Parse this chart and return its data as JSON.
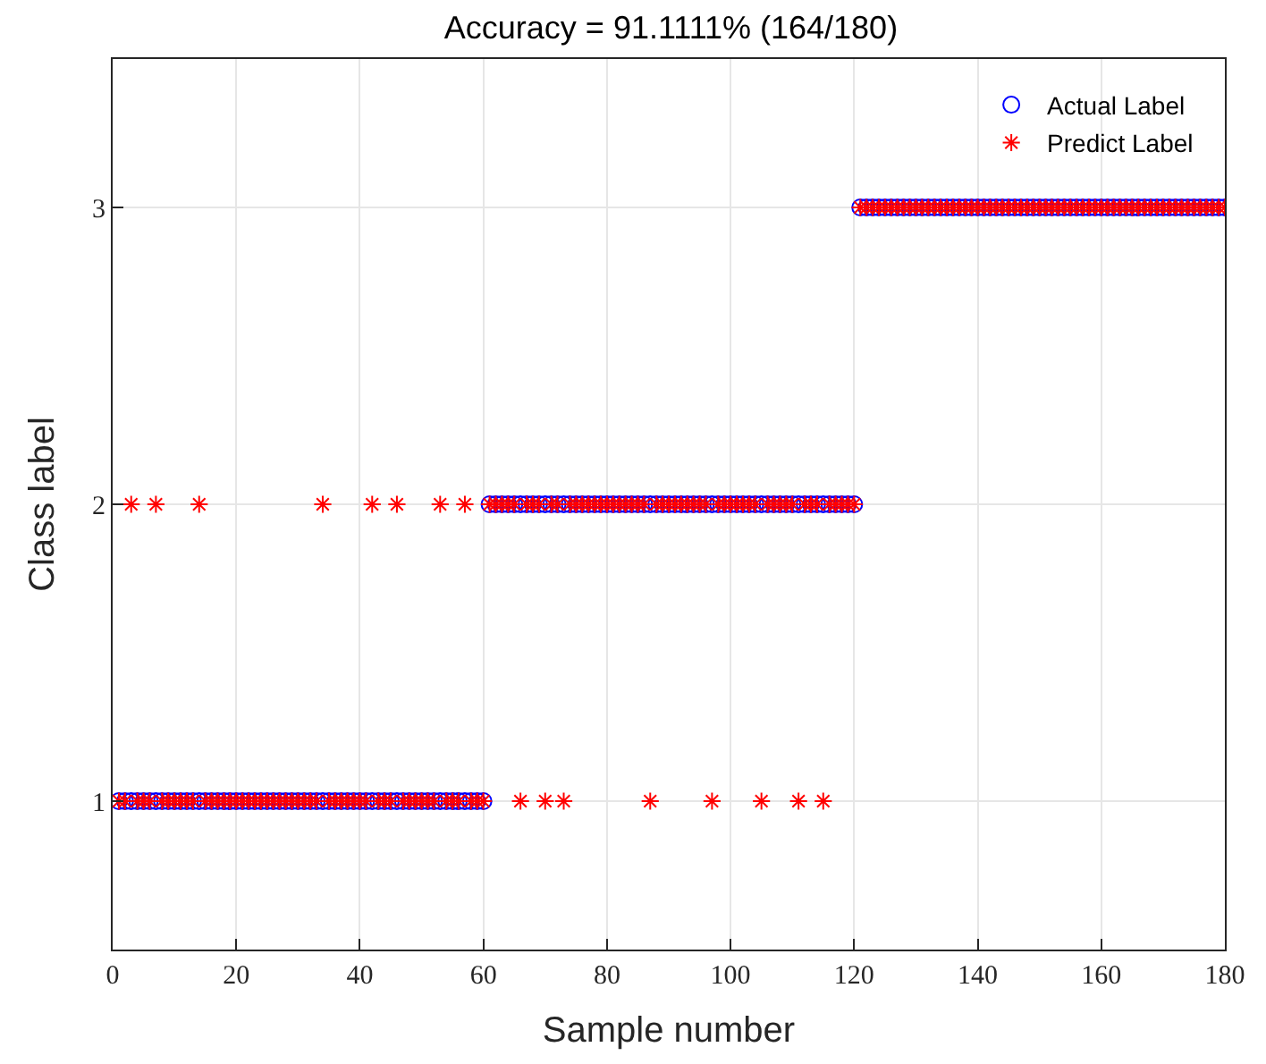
{
  "chart_data": {
    "type": "scatter",
    "title": "Accuracy = 91.1111% (164/180)",
    "xlabel": "Sample number",
    "ylabel": "Class label",
    "x": [
      1,
      2,
      3,
      4,
      5,
      6,
      7,
      8,
      9,
      10,
      11,
      12,
      13,
      14,
      15,
      16,
      17,
      18,
      19,
      20,
      21,
      22,
      23,
      24,
      25,
      26,
      27,
      28,
      29,
      30,
      31,
      32,
      33,
      34,
      35,
      36,
      37,
      38,
      39,
      40,
      41,
      42,
      43,
      44,
      45,
      46,
      47,
      48,
      49,
      50,
      51,
      52,
      53,
      54,
      55,
      56,
      57,
      58,
      59,
      60,
      61,
      62,
      63,
      64,
      65,
      66,
      67,
      68,
      69,
      70,
      71,
      72,
      73,
      74,
      75,
      76,
      77,
      78,
      79,
      80,
      81,
      82,
      83,
      84,
      85,
      86,
      87,
      88,
      89,
      90,
      91,
      92,
      93,
      94,
      95,
      96,
      97,
      98,
      99,
      100,
      101,
      102,
      103,
      104,
      105,
      106,
      107,
      108,
      109,
      110,
      111,
      112,
      113,
      114,
      115,
      116,
      117,
      118,
      119,
      120,
      121,
      122,
      123,
      124,
      125,
      126,
      127,
      128,
      129,
      130,
      131,
      132,
      133,
      134,
      135,
      136,
      137,
      138,
      139,
      140,
      141,
      142,
      143,
      144,
      145,
      146,
      147,
      148,
      149,
      150,
      151,
      152,
      153,
      154,
      155,
      156,
      157,
      158,
      159,
      160,
      161,
      162,
      163,
      164,
      165,
      166,
      167,
      168,
      169,
      170,
      171,
      172,
      173,
      174,
      175,
      176,
      177,
      178,
      179,
      180
    ],
    "series": [
      {
        "name": "Actual Label",
        "color": "#0000ff",
        "marker": "circle",
        "values": [
          1,
          1,
          1,
          1,
          1,
          1,
          1,
          1,
          1,
          1,
          1,
          1,
          1,
          1,
          1,
          1,
          1,
          1,
          1,
          1,
          1,
          1,
          1,
          1,
          1,
          1,
          1,
          1,
          1,
          1,
          1,
          1,
          1,
          1,
          1,
          1,
          1,
          1,
          1,
          1,
          1,
          1,
          1,
          1,
          1,
          1,
          1,
          1,
          1,
          1,
          1,
          1,
          1,
          1,
          1,
          1,
          1,
          1,
          1,
          1,
          2,
          2,
          2,
          2,
          2,
          2,
          2,
          2,
          2,
          2,
          2,
          2,
          2,
          2,
          2,
          2,
          2,
          2,
          2,
          2,
          2,
          2,
          2,
          2,
          2,
          2,
          2,
          2,
          2,
          2,
          2,
          2,
          2,
          2,
          2,
          2,
          2,
          2,
          2,
          2,
          2,
          2,
          2,
          2,
          2,
          2,
          2,
          2,
          2,
          2,
          2,
          2,
          2,
          2,
          2,
          2,
          2,
          2,
          2,
          2,
          3,
          3,
          3,
          3,
          3,
          3,
          3,
          3,
          3,
          3,
          3,
          3,
          3,
          3,
          3,
          3,
          3,
          3,
          3,
          3,
          3,
          3,
          3,
          3,
          3,
          3,
          3,
          3,
          3,
          3,
          3,
          3,
          3,
          3,
          3,
          3,
          3,
          3,
          3,
          3,
          3,
          3,
          3,
          3,
          3,
          3,
          3,
          3,
          3,
          3,
          3,
          3,
          3,
          3,
          3,
          3,
          3,
          3,
          3,
          3
        ]
      },
      {
        "name": "Predict Label",
        "color": "#ff0000",
        "marker": "cross",
        "values": [
          1,
          1,
          2,
          1,
          1,
          1,
          2,
          1,
          1,
          1,
          1,
          1,
          1,
          2,
          1,
          1,
          1,
          1,
          1,
          1,
          1,
          1,
          1,
          1,
          1,
          1,
          1,
          1,
          1,
          1,
          1,
          1,
          1,
          2,
          1,
          1,
          1,
          1,
          1,
          1,
          1,
          2,
          1,
          1,
          1,
          2,
          1,
          1,
          1,
          1,
          1,
          1,
          2,
          1,
          1,
          1,
          2,
          1,
          1,
          1,
          2,
          2,
          2,
          2,
          2,
          1,
          2,
          2,
          2,
          1,
          2,
          2,
          1,
          2,
          2,
          2,
          2,
          2,
          2,
          2,
          2,
          2,
          2,
          2,
          2,
          2,
          1,
          2,
          2,
          2,
          2,
          2,
          2,
          2,
          2,
          2,
          1,
          2,
          2,
          2,
          2,
          2,
          2,
          2,
          1,
          2,
          2,
          2,
          2,
          2,
          1,
          2,
          2,
          2,
          1,
          2,
          2,
          2,
          2,
          2,
          3,
          3,
          3,
          3,
          3,
          3,
          3,
          3,
          3,
          3,
          3,
          3,
          3,
          3,
          3,
          3,
          3,
          3,
          3,
          3,
          3,
          3,
          3,
          3,
          3,
          3,
          3,
          3,
          3,
          3,
          3,
          3,
          3,
          3,
          3,
          3,
          3,
          3,
          3,
          3,
          3,
          3,
          3,
          3,
          3,
          3,
          3,
          3,
          3,
          3,
          3,
          3,
          3,
          3,
          3,
          3,
          3,
          3,
          3,
          3
        ]
      }
    ],
    "xlim": [
      0,
      180
    ],
    "xticks": [
      0,
      20,
      40,
      60,
      80,
      100,
      120,
      140,
      160,
      180
    ],
    "ylim": [
      0.5,
      3.5
    ],
    "yticks": [
      1,
      2,
      3
    ],
    "grid": true,
    "legend": "top right"
  }
}
